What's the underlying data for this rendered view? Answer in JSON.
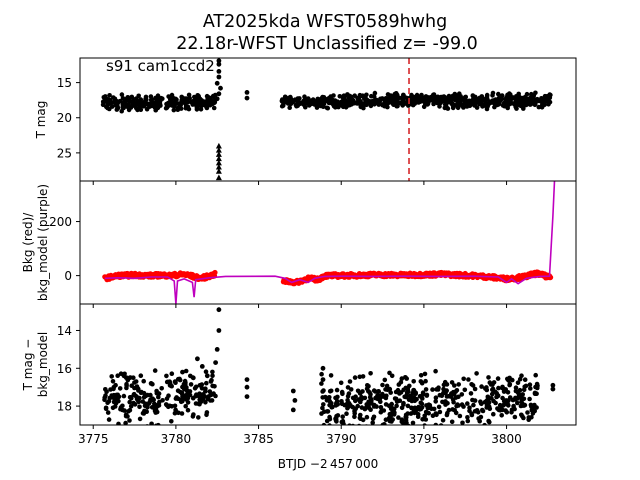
{
  "title": {
    "line1": "AT2025kda  WFST0589hwhg",
    "line2": "22.18r-WFST Unclassified z= -99.0"
  },
  "annotation": "s91 cam1ccd2",
  "xlabel": "BTJD −2 457 000",
  "x_ticks": [
    "3775",
    "3780",
    "3785",
    "3790",
    "3795",
    "3800"
  ],
  "chart_data": [
    {
      "type": "scatter",
      "panel": "top",
      "ylabel": "T mag",
      "xlim": [
        3774.2,
        3804.2
      ],
      "ylim": [
        29.0,
        11.5
      ],
      "y_inverted": true,
      "y_ticks": [
        15,
        20,
        25
      ],
      "vline": {
        "x": 3794.1,
        "color": "#d62728",
        "style": "dashed"
      },
      "bands": [
        {
          "x_start": 3775.6,
          "x_end": 3779.2,
          "y_center": 17.9,
          "y_spread": 1.2
        },
        {
          "x_start": 3779.4,
          "x_end": 3782.4,
          "y_center": 17.8,
          "y_spread": 1.2
        },
        {
          "x_start": 3786.4,
          "x_end": 3789.0,
          "y_center": 17.8,
          "y_spread": 0.9
        },
        {
          "x_start": 3789.0,
          "x_end": 3802.7,
          "y_center": 17.6,
          "y_spread": 1.2
        }
      ],
      "points": [
        {
          "x": 3782.6,
          "y": 11.9
        },
        {
          "x": 3782.6,
          "y": 12.4
        },
        {
          "x": 3782.6,
          "y": 13.4
        },
        {
          "x": 3782.6,
          "y": 14.2
        },
        {
          "x": 3782.5,
          "y": 15.1
        },
        {
          "x": 3782.7,
          "y": 15.8
        },
        {
          "x": 3782.6,
          "y": 16.6
        },
        {
          "x": 3782.5,
          "y": 17.3
        },
        {
          "x": 3784.3,
          "y": 16.4
        },
        {
          "x": 3784.3,
          "y": 17.2
        },
        {
          "x": 3782.6,
          "y": 24.0
        },
        {
          "x": 3782.6,
          "y": 24.6
        },
        {
          "x": 3782.6,
          "y": 25.2
        },
        {
          "x": 3782.6,
          "y": 25.8
        },
        {
          "x": 3782.6,
          "y": 26.4
        },
        {
          "x": 3782.6,
          "y": 27.0
        },
        {
          "x": 3782.6,
          "y": 27.6
        },
        {
          "x": 3782.6,
          "y": 28.5
        }
      ]
    },
    {
      "type": "line",
      "panel": "middle",
      "ylabel": "Bkg (red)/\nbkg_model (purple)",
      "xlim": [
        3774.2,
        3804.2
      ],
      "ylim": [
        -105,
        350
      ],
      "y_ticks": [
        0,
        200
      ],
      "series": [
        {
          "color": "#ff0000",
          "x": [
            3775.7,
            3776.5,
            3777.5,
            3778.5,
            3779.2,
            3779.6,
            3780.5,
            3781.5,
            3782.4,
            3786.5,
            3787.3,
            3788.0,
            3788.6,
            3789.0,
            3790.0,
            3792.0,
            3794.0,
            3796.0,
            3798.0,
            3799.0,
            3800.0,
            3801.0,
            3801.8,
            3802.3,
            3802.7
          ],
          "y": [
            -10,
            0,
            2,
            0,
            2,
            0,
            5,
            -10,
            5,
            -20,
            -25,
            -10,
            -15,
            0,
            0,
            3,
            2,
            5,
            0,
            -5,
            -12,
            -5,
            8,
            0,
            -10
          ]
        },
        {
          "color": "#bf00bf",
          "x": [
            3775.7,
            3776.5,
            3777.5,
            3778.5,
            3779.5,
            3779.9,
            3780.0,
            3780.1,
            3780.5,
            3781.0,
            3781.1,
            3781.2,
            3782.0,
            3783.0,
            3786.0,
            3786.6,
            3787.0,
            3787.5,
            3788.0,
            3788.4,
            3789.0,
            3790.0,
            3792.0,
            3794.0,
            3796.0,
            3798.0,
            3799.5,
            3800.0,
            3800.3,
            3800.7,
            3801.2,
            3802.0,
            3802.6,
            3802.8,
            3802.9
          ],
          "y": [
            -10,
            -8,
            -10,
            -5,
            -5,
            -20,
            -105,
            -20,
            -12,
            -25,
            -80,
            -15,
            -8,
            -3,
            -2,
            -10,
            -25,
            -15,
            -25,
            -10,
            -3,
            -2,
            -3,
            -2,
            -3,
            -2,
            -5,
            -25,
            -12,
            -30,
            -10,
            -3,
            -2,
            220,
            350
          ]
        }
      ]
    },
    {
      "type": "scatter",
      "panel": "bottom",
      "ylabel": "T mag −\nbkg_model",
      "xlim": [
        3774.2,
        3804.2
      ],
      "ylim": [
        19.0,
        12.6
      ],
      "y_inverted": true,
      "y_ticks": [
        14,
        16,
        18
      ],
      "bands": [
        {
          "x_start": 3775.6,
          "x_end": 3779.2,
          "y_center": 17.6,
          "y_spread": 1.6
        },
        {
          "x_start": 3779.4,
          "x_end": 3782.4,
          "y_center": 17.3,
          "y_spread": 1.6
        },
        {
          "x_start": 3788.8,
          "x_end": 3799.0,
          "y_center": 17.8,
          "y_spread": 1.7
        },
        {
          "x_start": 3799.0,
          "x_end": 3801.9,
          "y_center": 17.5,
          "y_spread": 1.4
        }
      ],
      "points": [
        {
          "x": 3782.6,
          "y": 12.9
        },
        {
          "x": 3782.6,
          "y": 14.0
        },
        {
          "x": 3782.5,
          "y": 15.0
        },
        {
          "x": 3781.3,
          "y": 15.5
        },
        {
          "x": 3782.4,
          "y": 15.7
        },
        {
          "x": 3781.6,
          "y": 15.9
        },
        {
          "x": 3780.4,
          "y": 16.2
        },
        {
          "x": 3781.9,
          "y": 16.4
        },
        {
          "x": 3784.3,
          "y": 16.6
        },
        {
          "x": 3784.3,
          "y": 17.0
        },
        {
          "x": 3784.3,
          "y": 17.5
        },
        {
          "x": 3787.1,
          "y": 17.2
        },
        {
          "x": 3787.2,
          "y": 17.7
        },
        {
          "x": 3787.1,
          "y": 18.2
        },
        {
          "x": 3788.9,
          "y": 16.0
        },
        {
          "x": 3788.9,
          "y": 16.6
        },
        {
          "x": 3777.0,
          "y": 16.5
        },
        {
          "x": 3778.5,
          "y": 16.8
        },
        {
          "x": 3802.8,
          "y": 16.9
        },
        {
          "x": 3802.8,
          "y": 17.1
        }
      ]
    }
  ]
}
